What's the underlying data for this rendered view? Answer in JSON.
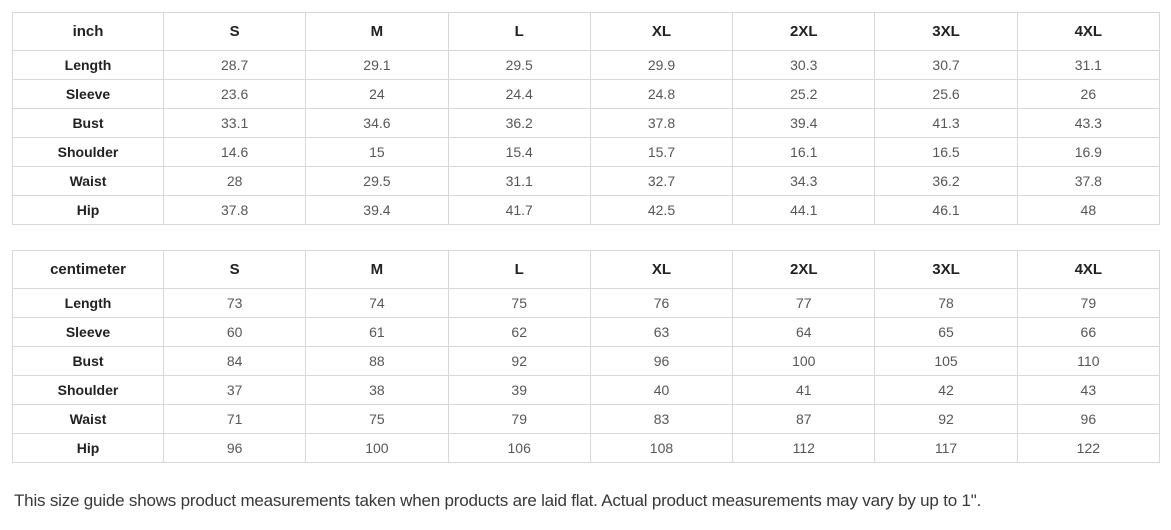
{
  "tables": [
    {
      "name": "size-table-inch",
      "unit_label": "inch",
      "sizes": [
        "S",
        "M",
        "L",
        "XL",
        "2XL",
        "3XL",
        "4XL"
      ],
      "rows": [
        {
          "label": "Length",
          "values": [
            "28.7",
            "29.1",
            "29.5",
            "29.9",
            "30.3",
            "30.7",
            "31.1"
          ]
        },
        {
          "label": "Sleeve",
          "values": [
            "23.6",
            "24",
            "24.4",
            "24.8",
            "25.2",
            "25.6",
            "26"
          ]
        },
        {
          "label": "Bust",
          "values": [
            "33.1",
            "34.6",
            "36.2",
            "37.8",
            "39.4",
            "41.3",
            "43.3"
          ]
        },
        {
          "label": "Shoulder",
          "values": [
            "14.6",
            "15",
            "15.4",
            "15.7",
            "16.1",
            "16.5",
            "16.9"
          ]
        },
        {
          "label": "Waist",
          "values": [
            "28",
            "29.5",
            "31.1",
            "32.7",
            "34.3",
            "36.2",
            "37.8"
          ]
        },
        {
          "label": "Hip",
          "values": [
            "37.8",
            "39.4",
            "41.7",
            "42.5",
            "44.1",
            "46.1",
            "48"
          ]
        }
      ]
    },
    {
      "name": "size-table-centimeter",
      "unit_label": "centimeter",
      "sizes": [
        "S",
        "M",
        "L",
        "XL",
        "2XL",
        "3XL",
        "4XL"
      ],
      "rows": [
        {
          "label": "Length",
          "values": [
            "73",
            "74",
            "75",
            "76",
            "77",
            "78",
            "79"
          ]
        },
        {
          "label": "Sleeve",
          "values": [
            "60",
            "61",
            "62",
            "63",
            "64",
            "65",
            "66"
          ]
        },
        {
          "label": "Bust",
          "values": [
            "84",
            "88",
            "92",
            "96",
            "100",
            "105",
            "110"
          ]
        },
        {
          "label": "Shoulder",
          "values": [
            "37",
            "38",
            "39",
            "40",
            "41",
            "42",
            "43"
          ]
        },
        {
          "label": "Waist",
          "values": [
            "71",
            "75",
            "79",
            "83",
            "87",
            "92",
            "96"
          ]
        },
        {
          "label": "Hip",
          "values": [
            "96",
            "100",
            "106",
            "108",
            "112",
            "117",
            "122"
          ]
        }
      ]
    }
  ],
  "note": "This size guide shows product measurements taken when products are laid flat. Actual product measurements may vary by up to 1\".",
  "colors": {
    "background": "#ffffff",
    "border": "#d8d8d8",
    "header_text": "#222222",
    "value_text": "#575757",
    "note_text": "#383838"
  }
}
